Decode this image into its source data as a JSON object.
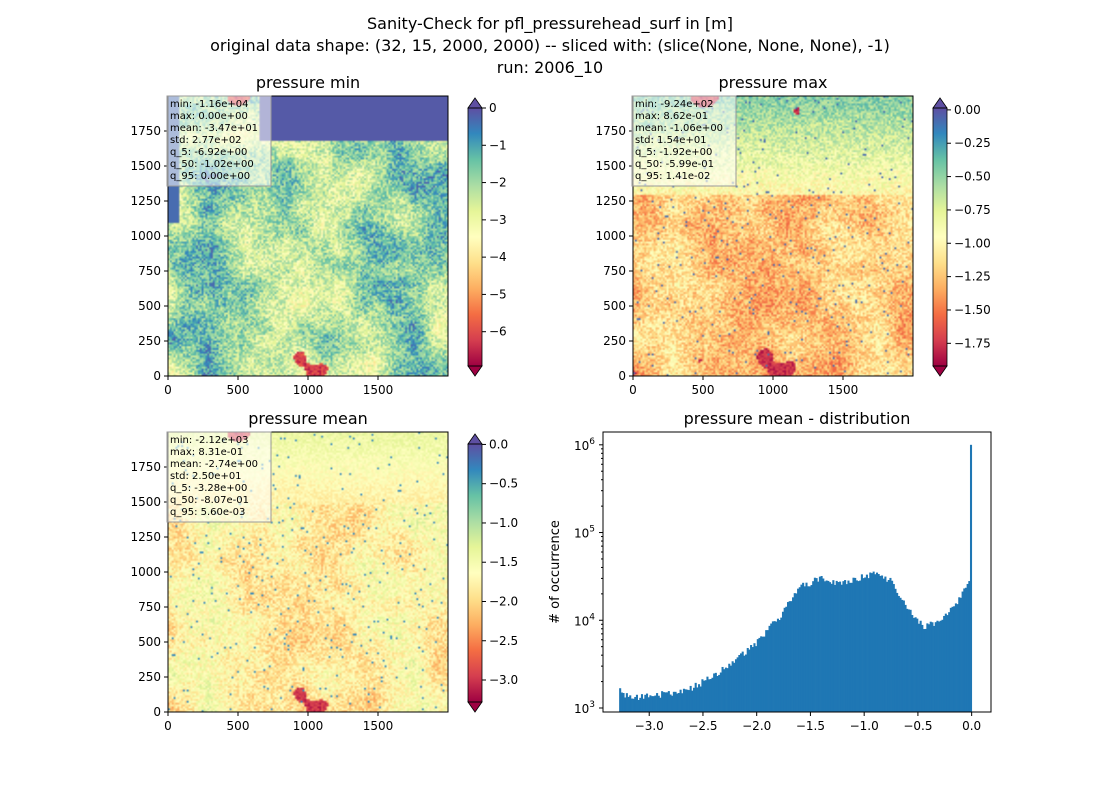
{
  "figure": {
    "title_lines": [
      "Sanity-Check for pfl_pressurehead_surf in [m]",
      "original data shape: (32, 15, 2000, 2000) -- sliced with: (slice(None, None, None), -1)",
      "run: 2006_10"
    ]
  },
  "chart_data": [
    {
      "type": "heatmap",
      "title": "pressure min",
      "xlim": [
        0,
        2000
      ],
      "ylim": [
        0,
        2000
      ],
      "xticks": [
        "0",
        "500",
        "1000",
        "1500"
      ],
      "yticks": [
        "0",
        "250",
        "500",
        "750",
        "1000",
        "1250",
        "1500",
        "1750"
      ],
      "colorbar": {
        "colormap": "Spectral",
        "range": [
          -6.92,
          0
        ],
        "extend": "both",
        "ticks": [
          "0",
          "−1",
          "−2",
          "−3",
          "−4",
          "−5",
          "−6"
        ]
      },
      "stats": [
        "min: -1.16e+04",
        "max: 0.00e+00",
        "mean: -3.47e+01",
        "std: 2.77e+02",
        "q_5: -6.92e+00",
        "q_50: -1.02e+00",
        "q_95: 0.00e+00"
      ]
    },
    {
      "type": "heatmap",
      "title": "pressure max",
      "xlim": [
        0,
        2000
      ],
      "ylim": [
        0,
        2000
      ],
      "xticks": [
        "0",
        "500",
        "1000",
        "1500"
      ],
      "yticks": [
        "0",
        "250",
        "500",
        "750",
        "1000",
        "1250",
        "1500",
        "1750"
      ],
      "colorbar": {
        "colormap": "Spectral",
        "range": [
          -1.92,
          0.0141
        ],
        "extend": "both",
        "ticks": [
          "0.00",
          "−0.25",
          "−0.50",
          "−0.75",
          "−1.00",
          "−1.25",
          "−1.50",
          "−1.75"
        ]
      },
      "stats": [
        "min: -9.24e+02",
        "max: 8.62e-01",
        "mean: -1.06e+00",
        "std: 1.54e+01",
        "q_5: -1.92e+00",
        "q_50: -5.99e-01",
        "q_95: 1.41e-02"
      ]
    },
    {
      "type": "heatmap",
      "title": "pressure mean",
      "xlim": [
        0,
        2000
      ],
      "ylim": [
        0,
        2000
      ],
      "xticks": [
        "0",
        "500",
        "1000",
        "1500"
      ],
      "yticks": [
        "0",
        "250",
        "500",
        "750",
        "1000",
        "1250",
        "1500",
        "1750"
      ],
      "colorbar": {
        "colormap": "Spectral",
        "range": [
          -3.28,
          0.0056
        ],
        "extend": "both",
        "ticks": [
          "0.0",
          "−0.5",
          "−1.0",
          "−1.5",
          "−2.0",
          "−2.5",
          "−3.0"
        ]
      },
      "stats": [
        "min: -2.12e+03",
        "max: 8.31e-01",
        "mean: -2.74e+00",
        "std: 2.50e+01",
        "q_5: -3.28e+00",
        "q_50: -8.07e-01",
        "q_95: 5.60e-03"
      ]
    },
    {
      "type": "bar",
      "title": "pressure mean - distribution",
      "ylabel": "# of occurrence",
      "yscale": "log",
      "xlim": [
        -3.43,
        0.18
      ],
      "ylim": [
        900,
        1400000
      ],
      "xticks": [
        "−3.0",
        "−2.5",
        "−2.0",
        "−1.5",
        "−1.0",
        "−0.5",
        "0.0"
      ],
      "yticks": [
        "10^3",
        "10^4",
        "10^5",
        "10^6"
      ],
      "color": "#1f77b4",
      "bin_range": [
        -3.28,
        0.0
      ],
      "counts_approx": [
        [
          -3.28,
          1750
        ],
        [
          -3.2,
          1320
        ],
        [
          -3.0,
          1350
        ],
        [
          -2.8,
          1500
        ],
        [
          -2.6,
          1700
        ],
        [
          -2.4,
          2300
        ],
        [
          -2.2,
          3500
        ],
        [
          -2.0,
          5500
        ],
        [
          -1.8,
          10500
        ],
        [
          -1.6,
          24000
        ],
        [
          -1.4,
          30000
        ],
        [
          -1.2,
          26000
        ],
        [
          -0.9,
          35000
        ],
        [
          -0.75,
          28000
        ],
        [
          -0.6,
          14000
        ],
        [
          -0.45,
          8500
        ],
        [
          -0.3,
          9500
        ],
        [
          -0.15,
          15000
        ],
        [
          -0.02,
          28000
        ],
        [
          0.0,
          1000000
        ]
      ]
    }
  ]
}
